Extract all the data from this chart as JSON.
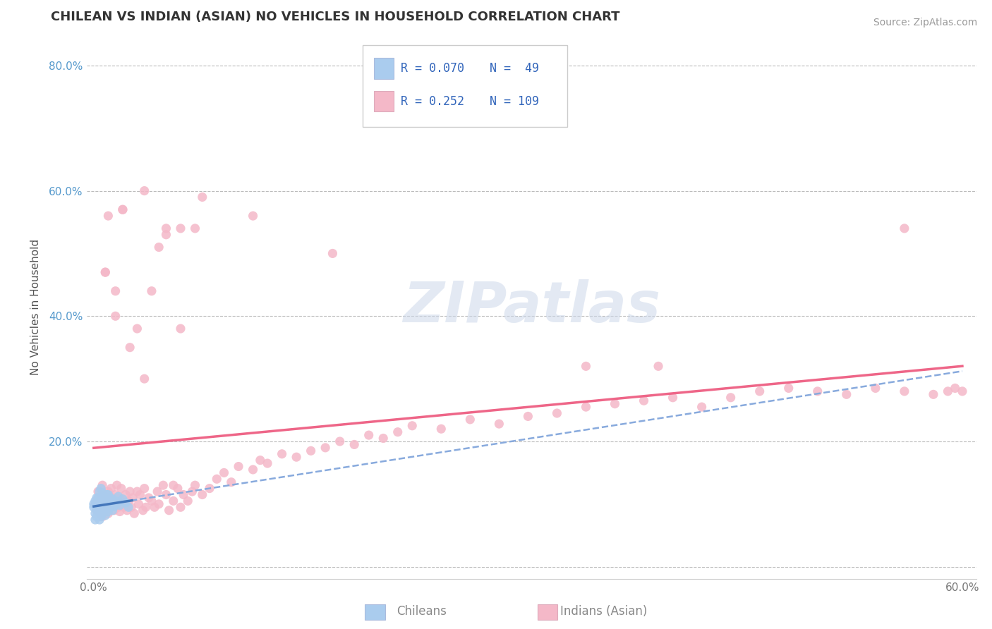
{
  "title": "CHILEAN VS INDIAN (ASIAN) NO VEHICLES IN HOUSEHOLD CORRELATION CHART",
  "source": "Source: ZipAtlas.com",
  "xlabel_bottom": [
    "Chileans",
    "Indians (Asian)"
  ],
  "ylabel": "No Vehicles in Household",
  "xlim": [
    -0.005,
    0.61
  ],
  "ylim": [
    -0.02,
    0.85
  ],
  "xticks": [
    0.0,
    0.1,
    0.2,
    0.3,
    0.4,
    0.5,
    0.6
  ],
  "yticks": [
    0.0,
    0.2,
    0.4,
    0.6,
    0.8
  ],
  "xticklabels": [
    "0.0%",
    "",
    "",
    "",
    "",
    "",
    "60.0%"
  ],
  "yticklabels": [
    "",
    "20.0%",
    "40.0%",
    "60.0%",
    "80.0%"
  ],
  "legend_R1": "R = 0.070",
  "legend_N1": "N =  49",
  "legend_R2": "R = 0.252",
  "legend_N2": "N = 109",
  "color_chilean": "#aaccee",
  "color_indian": "#f4b8c8",
  "line_color_chilean_solid": "#4477bb",
  "line_color_chilean_dashed": "#88aadd",
  "line_color_indian": "#ee6688",
  "watermark": "ZIPatlas",
  "background_color": "#ffffff",
  "grid_color": "#bbbbbb",
  "chilean_x": [
    0.0,
    0.0,
    0.001,
    0.001,
    0.001,
    0.002,
    0.002,
    0.002,
    0.002,
    0.003,
    0.003,
    0.003,
    0.004,
    0.004,
    0.004,
    0.004,
    0.005,
    0.005,
    0.005,
    0.005,
    0.005,
    0.006,
    0.006,
    0.006,
    0.006,
    0.007,
    0.007,
    0.007,
    0.008,
    0.008,
    0.008,
    0.009,
    0.009,
    0.01,
    0.01,
    0.01,
    0.011,
    0.011,
    0.012,
    0.013,
    0.013,
    0.014,
    0.015,
    0.016,
    0.017,
    0.018,
    0.02,
    0.022,
    0.024
  ],
  "chilean_y": [
    0.095,
    0.1,
    0.085,
    0.105,
    0.075,
    0.09,
    0.1,
    0.11,
    0.08,
    0.085,
    0.095,
    0.11,
    0.075,
    0.095,
    0.11,
    0.12,
    0.08,
    0.09,
    0.1,
    0.11,
    0.125,
    0.085,
    0.095,
    0.108,
    0.118,
    0.088,
    0.098,
    0.112,
    0.082,
    0.096,
    0.108,
    0.092,
    0.115,
    0.088,
    0.1,
    0.115,
    0.095,
    0.11,
    0.102,
    0.09,
    0.108,
    0.096,
    0.105,
    0.1,
    0.112,
    0.098,
    0.108,
    0.102,
    0.095
  ],
  "indian_x": [
    0.001,
    0.002,
    0.003,
    0.004,
    0.005,
    0.005,
    0.006,
    0.006,
    0.007,
    0.008,
    0.008,
    0.009,
    0.01,
    0.01,
    0.011,
    0.012,
    0.012,
    0.013,
    0.014,
    0.015,
    0.015,
    0.016,
    0.017,
    0.018,
    0.018,
    0.019,
    0.02,
    0.021,
    0.022,
    0.023,
    0.024,
    0.025,
    0.026,
    0.027,
    0.028,
    0.03,
    0.031,
    0.032,
    0.034,
    0.035,
    0.036,
    0.038,
    0.04,
    0.042,
    0.044,
    0.045,
    0.048,
    0.05,
    0.052,
    0.055,
    0.058,
    0.06,
    0.062,
    0.065,
    0.068,
    0.07,
    0.075,
    0.08,
    0.085,
    0.09,
    0.095,
    0.1,
    0.11,
    0.115,
    0.12,
    0.13,
    0.14,
    0.15,
    0.16,
    0.17,
    0.18,
    0.19,
    0.2,
    0.21,
    0.22,
    0.24,
    0.26,
    0.28,
    0.3,
    0.32,
    0.34,
    0.36,
    0.38,
    0.4,
    0.42,
    0.44,
    0.46,
    0.48,
    0.5,
    0.52,
    0.54,
    0.56,
    0.58,
    0.59,
    0.595,
    0.6,
    0.008,
    0.01,
    0.035,
    0.02,
    0.025,
    0.03,
    0.04,
    0.06,
    0.05,
    0.045,
    0.015,
    0.055,
    0.07
  ],
  "indian_y": [
    0.1,
    0.09,
    0.12,
    0.085,
    0.11,
    0.095,
    0.13,
    0.08,
    0.105,
    0.095,
    0.115,
    0.09,
    0.085,
    0.12,
    0.105,
    0.095,
    0.125,
    0.11,
    0.09,
    0.115,
    0.1,
    0.13,
    0.095,
    0.11,
    0.088,
    0.125,
    0.105,
    0.095,
    0.115,
    0.09,
    0.105,
    0.12,
    0.095,
    0.11,
    0.085,
    0.12,
    0.1,
    0.115,
    0.09,
    0.125,
    0.095,
    0.11,
    0.105,
    0.095,
    0.12,
    0.1,
    0.13,
    0.115,
    0.09,
    0.105,
    0.125,
    0.095,
    0.115,
    0.105,
    0.12,
    0.13,
    0.115,
    0.125,
    0.14,
    0.15,
    0.135,
    0.16,
    0.155,
    0.17,
    0.165,
    0.18,
    0.175,
    0.185,
    0.19,
    0.2,
    0.195,
    0.21,
    0.205,
    0.215,
    0.225,
    0.22,
    0.235,
    0.228,
    0.24,
    0.245,
    0.255,
    0.26,
    0.265,
    0.27,
    0.255,
    0.27,
    0.28,
    0.285,
    0.28,
    0.275,
    0.285,
    0.28,
    0.275,
    0.28,
    0.285,
    0.28,
    0.47,
    0.56,
    0.3,
    0.57,
    0.35,
    0.38,
    0.44,
    0.38,
    0.53,
    0.51,
    0.4,
    0.13,
    0.54
  ],
  "indian_outliers_x": [
    0.008,
    0.015,
    0.02,
    0.035,
    0.05,
    0.06,
    0.075,
    0.11,
    0.165,
    0.34,
    0.39,
    0.56
  ],
  "indian_outliers_y": [
    0.47,
    0.44,
    0.57,
    0.6,
    0.54,
    0.54,
    0.59,
    0.56,
    0.5,
    0.32,
    0.32,
    0.54
  ]
}
